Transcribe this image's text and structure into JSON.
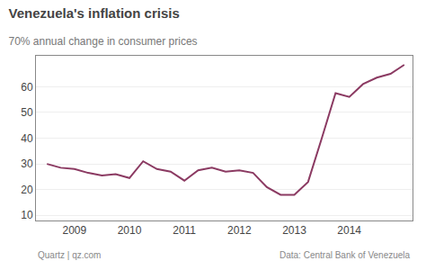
{
  "chart_data": {
    "type": "line",
    "title": "Venezuela's inflation crisis",
    "subtitle": "70% annual change in consumer prices",
    "annotations": [
      "Quartz | qz.com",
      "Data: Central Bank of Venezuela"
    ],
    "x": [
      2008.5,
      2008.75,
      2009.0,
      2009.25,
      2009.5,
      2009.75,
      2010.0,
      2010.25,
      2010.5,
      2010.75,
      2011.0,
      2011.25,
      2011.5,
      2011.75,
      2012.0,
      2012.25,
      2012.5,
      2012.75,
      2013.0,
      2013.25,
      2013.5,
      2013.75,
      2014.0,
      2014.25,
      2014.5,
      2014.75,
      2015.0
    ],
    "values": [
      30.0,
      28.5,
      28.0,
      26.5,
      25.5,
      26.0,
      24.5,
      31.0,
      28.0,
      27.0,
      23.5,
      27.5,
      28.5,
      27.0,
      27.5,
      26.5,
      21.0,
      18.0,
      18.0,
      23.0,
      40.0,
      57.5,
      56.0,
      61.0,
      63.5,
      65.0,
      68.5
    ],
    "color": "#8B3A62",
    "xlim": [
      2008.3,
      2015.15
    ],
    "xticks": [
      2009,
      2010,
      2011,
      2012,
      2013,
      2014
    ],
    "ylim": [
      8,
      72
    ],
    "yticks": [
      10,
      20,
      30,
      40,
      50,
      60
    ],
    "grid": "y"
  }
}
